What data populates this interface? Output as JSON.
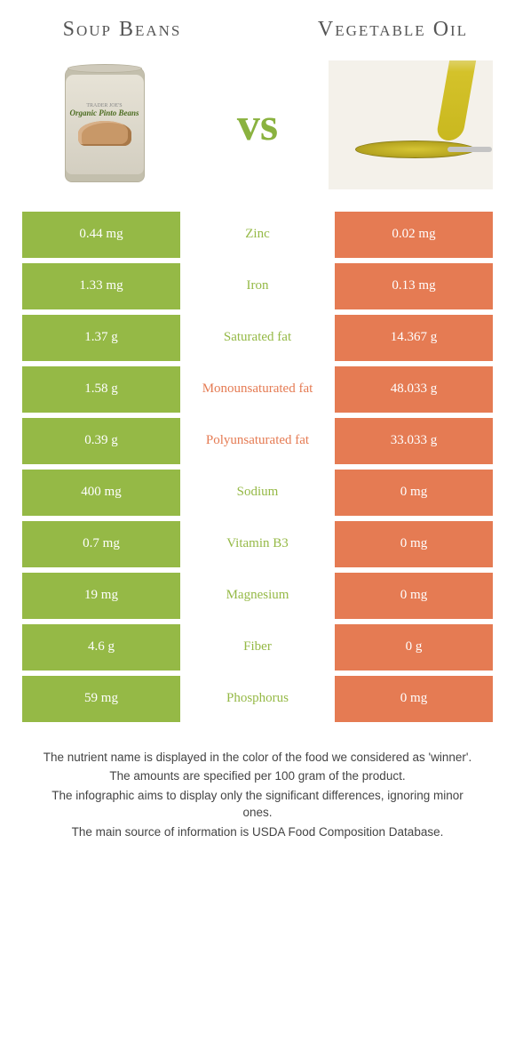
{
  "header": {
    "left_title": "Soup Beans",
    "right_title": "Vegetable Oil",
    "vs_label": "vs"
  },
  "colors": {
    "left_bg": "#95b946",
    "right_bg": "#e57b53",
    "left_text": "#95b946",
    "right_text": "#e57b53",
    "neutral_text": "#555555"
  },
  "nutrients": [
    {
      "label": "Zinc",
      "left": "0.44 mg",
      "right": "0.02 mg",
      "winner": "left"
    },
    {
      "label": "Iron",
      "left": "1.33 mg",
      "right": "0.13 mg",
      "winner": "left"
    },
    {
      "label": "Saturated fat",
      "left": "1.37 g",
      "right": "14.367 g",
      "winner": "left"
    },
    {
      "label": "Monounsaturated fat",
      "left": "1.58 g",
      "right": "48.033 g",
      "winner": "right"
    },
    {
      "label": "Polyunsaturated fat",
      "left": "0.39 g",
      "right": "33.033 g",
      "winner": "right"
    },
    {
      "label": "Sodium",
      "left": "400 mg",
      "right": "0 mg",
      "winner": "left"
    },
    {
      "label": "Vitamin B3",
      "left": "0.7 mg",
      "right": "0 mg",
      "winner": "left"
    },
    {
      "label": "Magnesium",
      "left": "19 mg",
      "right": "0 mg",
      "winner": "left"
    },
    {
      "label": "Fiber",
      "left": "4.6 g",
      "right": "0 g",
      "winner": "left"
    },
    {
      "label": "Phosphorus",
      "left": "59 mg",
      "right": "0 mg",
      "winner": "left"
    }
  ],
  "footnotes": [
    "The nutrient name is displayed in the color of the food we considered as 'winner'.",
    "The amounts are specified per 100 gram of the product.",
    "The infographic aims to display only the significant differences, ignoring minor ones.",
    "The main source of information is USDA Food Composition Database."
  ],
  "can_label_main": "Organic Pinto Beans",
  "can_label_brand": "TRADER JOE'S"
}
